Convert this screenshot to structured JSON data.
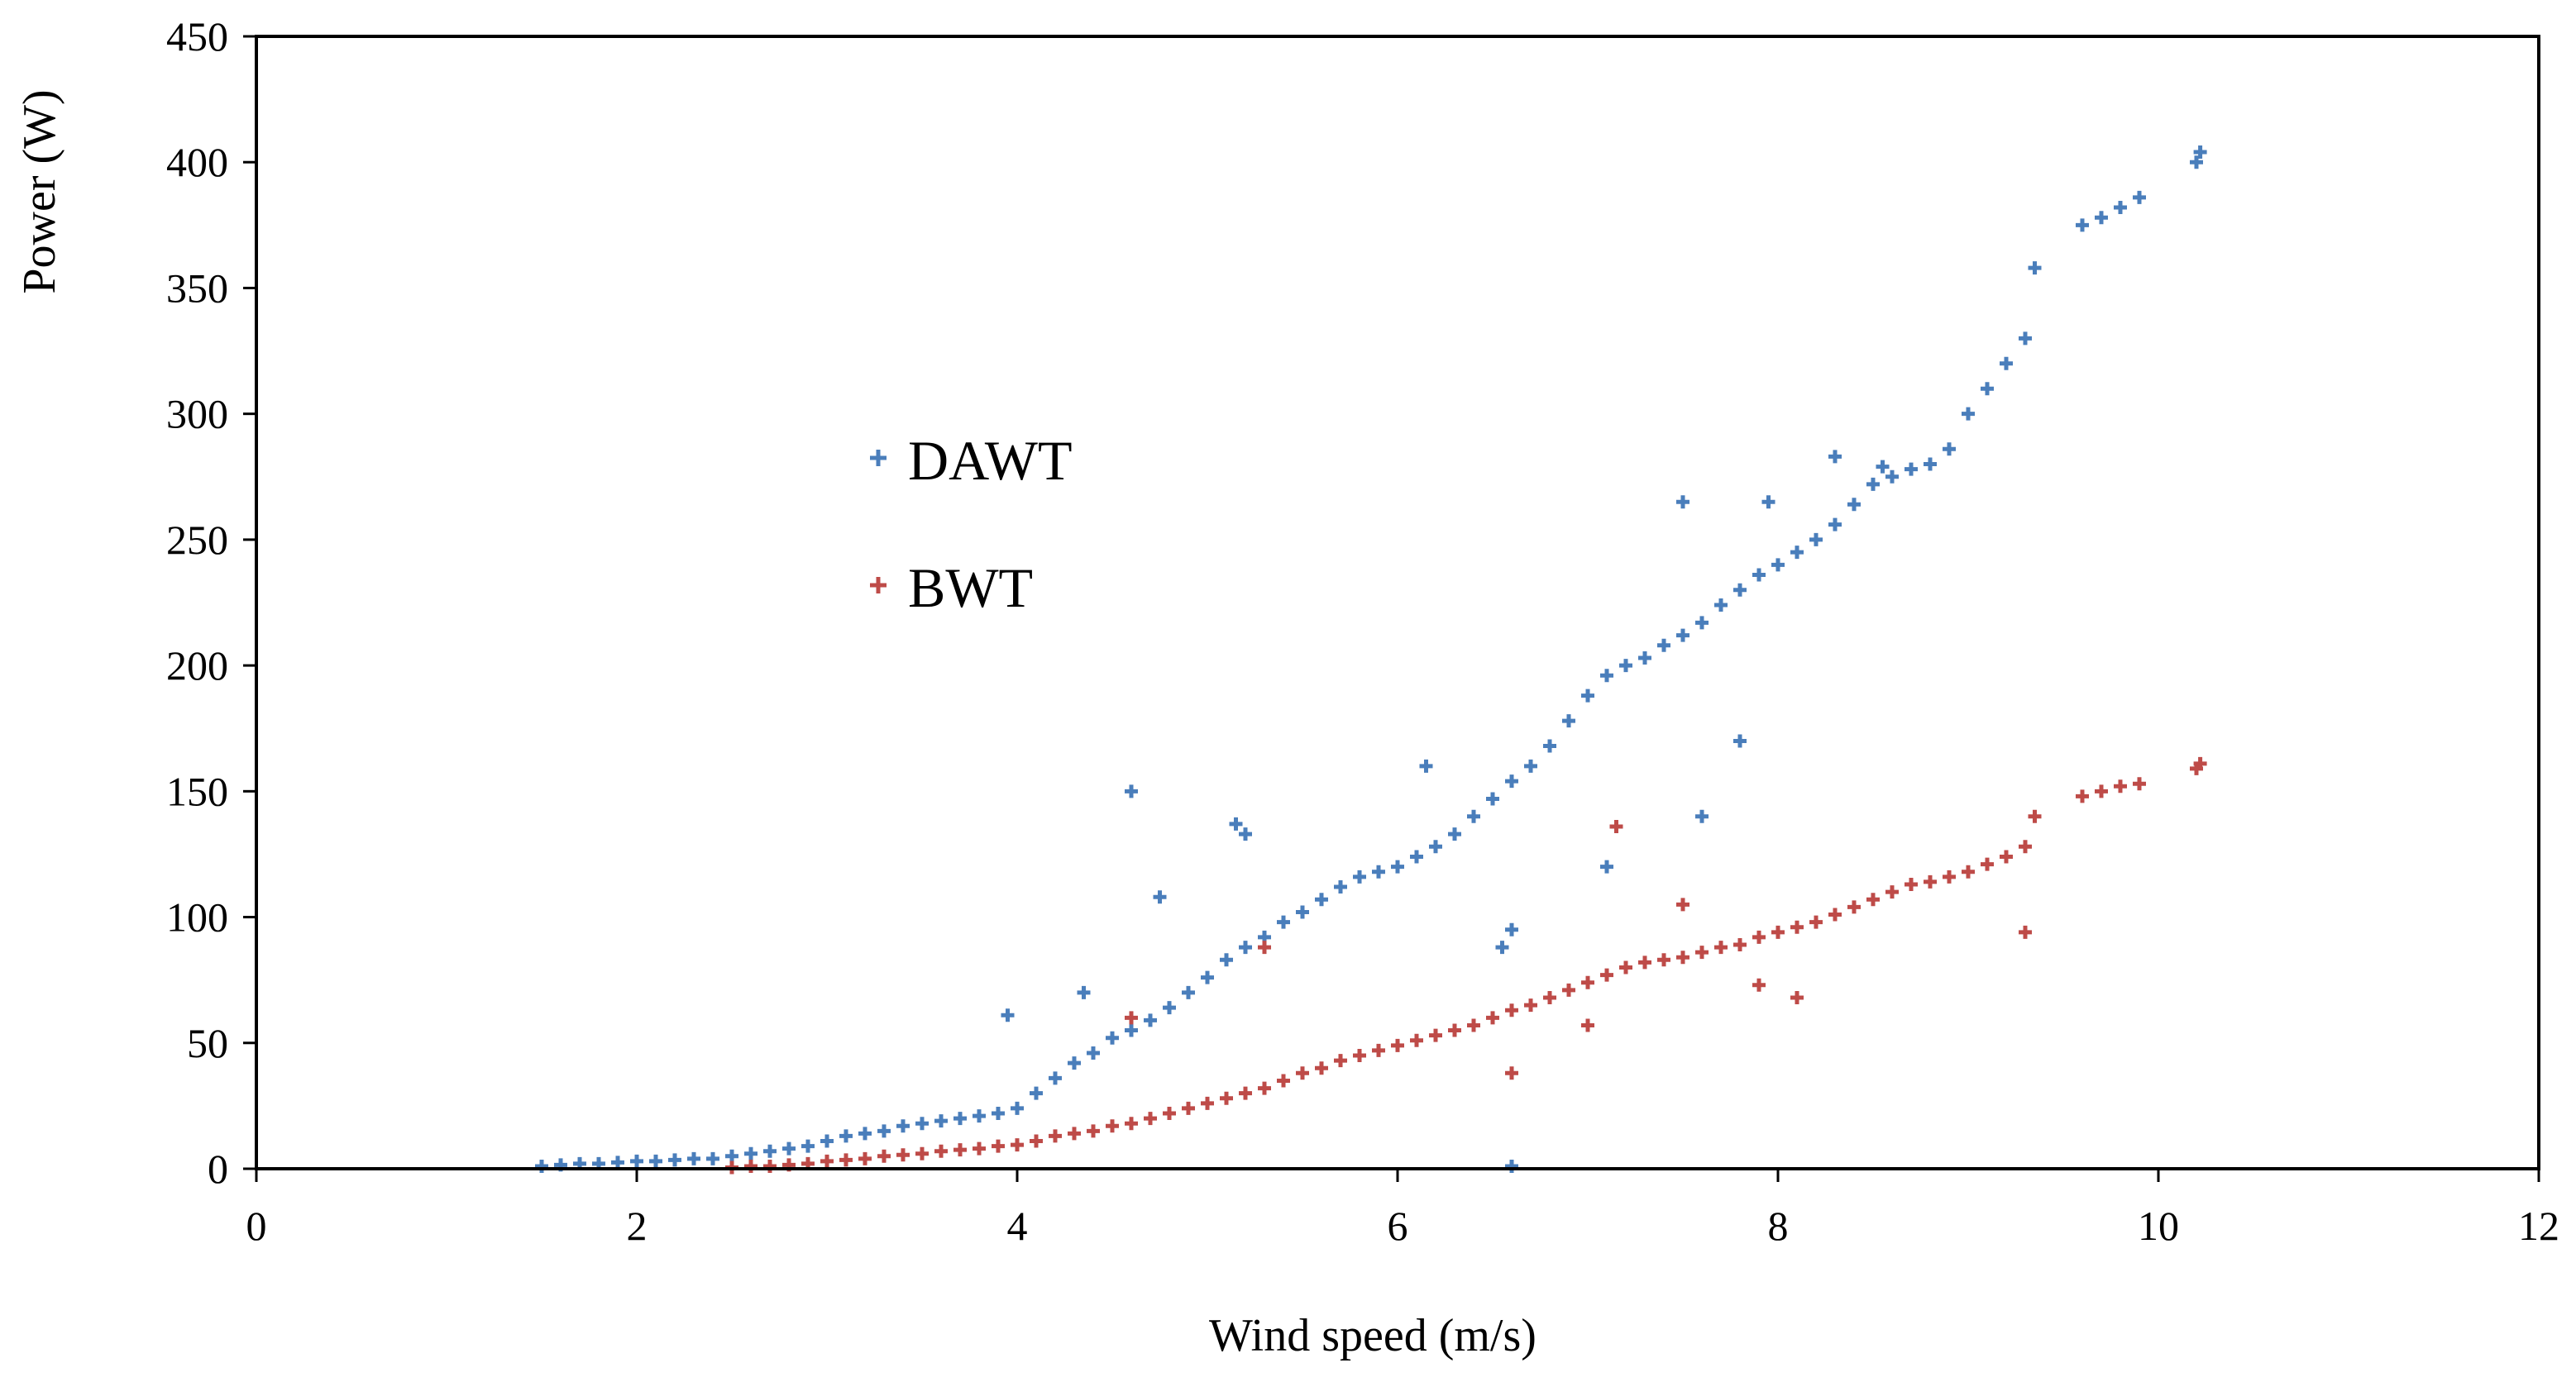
{
  "chart_data": {
    "type": "scatter",
    "title": "",
    "xlabel": "Wind speed (m/s)",
    "ylabel": "Power (W)",
    "xlim": [
      0,
      12
    ],
    "ylim": [
      0,
      450
    ],
    "x_ticks": [
      0,
      2,
      4,
      6,
      8,
      10,
      12
    ],
    "y_ticks": [
      0,
      50,
      100,
      150,
      200,
      250,
      300,
      350,
      400,
      450
    ],
    "grid": false,
    "legend": {
      "placement": "center-left"
    },
    "marker": "plus",
    "series": [
      {
        "name": "DAWT",
        "color": "#4a7ebb",
        "x": [
          1.5,
          1.6,
          1.7,
          1.8,
          1.9,
          2.0,
          2.1,
          2.2,
          2.3,
          2.4,
          2.5,
          2.6,
          2.7,
          2.8,
          2.9,
          3.0,
          3.1,
          3.2,
          3.3,
          3.4,
          3.5,
          3.6,
          3.7,
          3.8,
          3.9,
          4.0,
          4.1,
          4.2,
          4.3,
          4.4,
          4.5,
          4.6,
          4.7,
          4.8,
          4.9,
          5.0,
          5.1,
          5.2,
          5.3,
          5.4,
          5.5,
          5.6,
          5.7,
          5.8,
          5.9,
          6.0,
          6.1,
          6.2,
          6.3,
          6.4,
          6.5,
          6.6,
          6.7,
          6.8,
          6.9,
          7.0,
          7.1,
          7.2,
          7.3,
          7.4,
          7.5,
          7.6,
          7.7,
          7.8,
          7.9,
          8.0,
          8.1,
          8.2,
          8.3,
          8.4,
          8.5,
          8.6,
          8.7,
          8.8,
          8.9,
          9.0,
          9.1,
          9.2,
          9.3,
          9.35,
          9.6,
          9.7,
          9.8,
          9.9,
          10.2,
          10.22,
          3.95,
          4.35,
          4.6,
          4.75,
          5.15,
          5.2,
          6.15,
          7.5,
          7.95,
          8.3,
          8.55,
          6.55,
          6.6,
          7.8,
          7.1,
          7.6,
          6.6
        ],
        "y": [
          1,
          1.5,
          2,
          2,
          2.5,
          3,
          3,
          3.5,
          4,
          4,
          5,
          6,
          7,
          8,
          9,
          11,
          13,
          14,
          15,
          17,
          18,
          19,
          20,
          21,
          22,
          24,
          30,
          36,
          42,
          46,
          52,
          55,
          59,
          64,
          70,
          76,
          83,
          88,
          92,
          98,
          102,
          107,
          112,
          116,
          118,
          120,
          124,
          128,
          133,
          140,
          147,
          154,
          160,
          168,
          178,
          188,
          196,
          200,
          203,
          208,
          212,
          217,
          224,
          230,
          236,
          240,
          245,
          250,
          256,
          264,
          272,
          275,
          278,
          280,
          286,
          300,
          310,
          320,
          330,
          358,
          375,
          378,
          382,
          386,
          400,
          404,
          61,
          70,
          150,
          108,
          137,
          133,
          160,
          265,
          265,
          283,
          279,
          88,
          95,
          170,
          120,
          140,
          1
        ]
      },
      {
        "name": "BWT",
        "color": "#be4b48",
        "x": [
          2.5,
          2.6,
          2.7,
          2.8,
          2.9,
          3.0,
          3.1,
          3.2,
          3.3,
          3.4,
          3.5,
          3.6,
          3.7,
          3.8,
          3.9,
          4.0,
          4.1,
          4.2,
          4.3,
          4.4,
          4.5,
          4.6,
          4.7,
          4.8,
          4.9,
          5.0,
          5.1,
          5.2,
          5.3,
          5.4,
          5.5,
          5.6,
          5.7,
          5.8,
          5.9,
          6.0,
          6.1,
          6.2,
          6.3,
          6.4,
          6.5,
          6.6,
          6.7,
          6.8,
          6.9,
          7.0,
          7.1,
          7.2,
          7.3,
          7.4,
          7.5,
          7.6,
          7.7,
          7.8,
          7.9,
          8.0,
          8.1,
          8.2,
          8.3,
          8.4,
          8.5,
          8.6,
          8.7,
          8.8,
          8.9,
          9.0,
          9.1,
          9.2,
          9.3,
          9.35,
          9.6,
          9.7,
          9.8,
          9.9,
          10.2,
          10.22,
          9.3,
          7.5,
          7.15,
          5.3,
          4.6,
          6.6,
          7.0,
          7.9,
          8.1
        ],
        "y": [
          0.5,
          1,
          1,
          1.5,
          2,
          3,
          3.5,
          4,
          5,
          5.5,
          6,
          7,
          7.5,
          8,
          9,
          9.5,
          11,
          13,
          14,
          15,
          17,
          18,
          20,
          22,
          24,
          26,
          28,
          30,
          32,
          35,
          38,
          40,
          43,
          45,
          47,
          49,
          51,
          53,
          55,
          57,
          60,
          63,
          65,
          68,
          71,
          74,
          77,
          80,
          82,
          83,
          84,
          86,
          88,
          89,
          92,
          94,
          96,
          98,
          101,
          104,
          107,
          110,
          113,
          114,
          116,
          118,
          121,
          124,
          128,
          140,
          148,
          150,
          152,
          153,
          159,
          161,
          94,
          105,
          136,
          88,
          60,
          38,
          57,
          73,
          68
        ]
      }
    ]
  }
}
